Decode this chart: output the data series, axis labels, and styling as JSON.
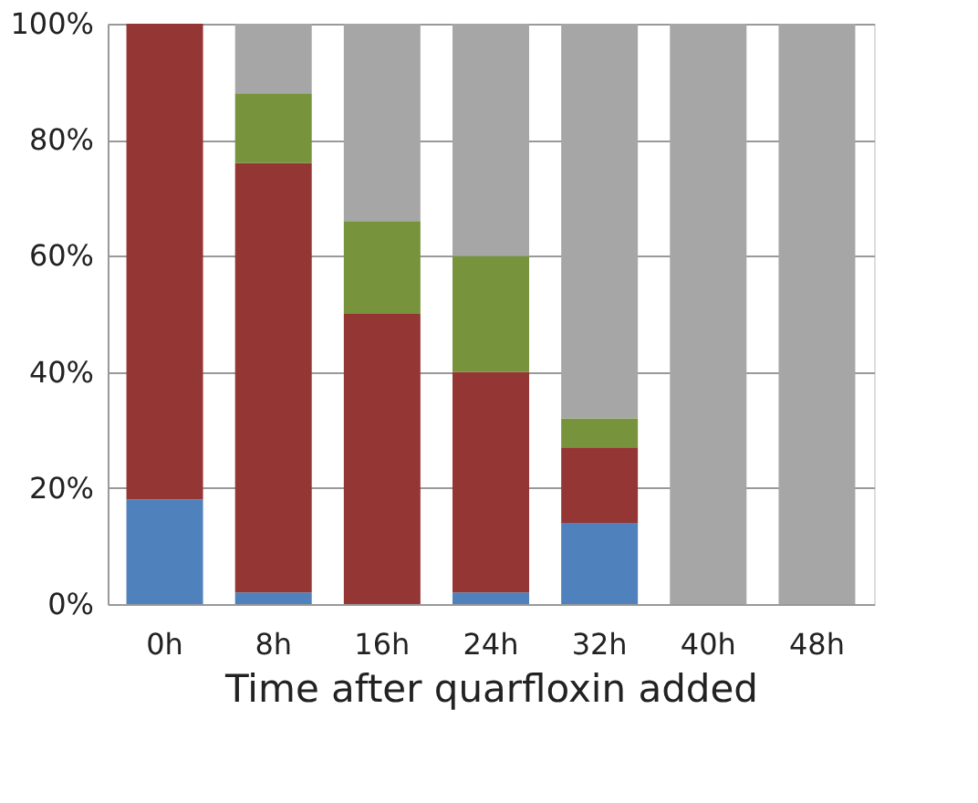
{
  "chart_data": {
    "type": "bar",
    "stacked": true,
    "xlabel": "Time after quarfloxin added",
    "categories": [
      "0h",
      "8h",
      "16h",
      "24h",
      "32h",
      "40h",
      "48h"
    ],
    "series": [
      {
        "color": "#4f81bd",
        "values": [
          18,
          2,
          0,
          2,
          14,
          0,
          0
        ]
      },
      {
        "color": "#943634",
        "values": [
          82,
          74,
          50,
          38,
          13,
          0,
          0
        ]
      },
      {
        "color": "#77933c",
        "values": [
          0,
          12,
          16,
          20,
          5,
          0,
          0
        ]
      },
      {
        "color": "#a6a6a6",
        "values": [
          0,
          12,
          34,
          40,
          68,
          100,
          100
        ]
      }
    ],
    "ylim": [
      0,
      100
    ],
    "yticks": [
      {
        "value": 0,
        "label": "0%"
      },
      {
        "value": 20,
        "label": "20%"
      },
      {
        "value": 40,
        "label": "40%"
      },
      {
        "value": 60,
        "label": "60%"
      },
      {
        "value": 80,
        "label": "80%"
      },
      {
        "value": 100,
        "label": "100%"
      }
    ],
    "grid": "y",
    "legend": false
  }
}
